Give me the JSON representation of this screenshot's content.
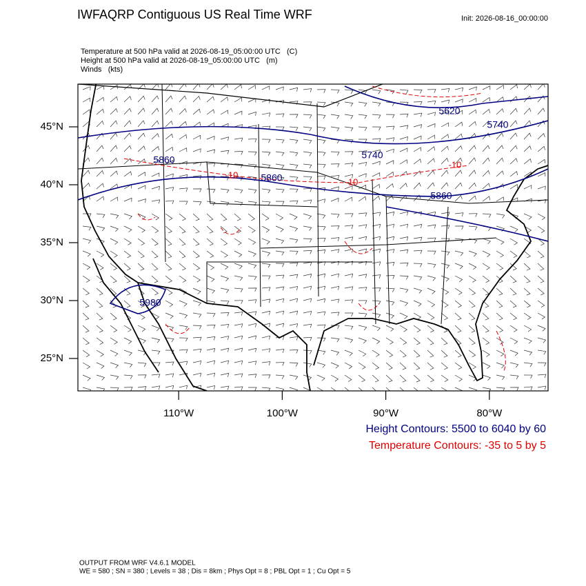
{
  "header": {
    "title": "IWFAQRP Contiguous US Real Time WRF",
    "init": "Init: 2026-08-16_00:00:00"
  },
  "fields": [
    "Temperature at 500 hPa valid at 2026-08-19_05:00:00 UTC   (C)",
    "Height at 500 hPa valid at 2026-08-19_05:00:00 UTC   (m)",
    "Winds   (kts)"
  ],
  "map": {
    "lon_range": [
      -119.73,
      -74.33
    ],
    "lat_range": [
      22.2,
      48.69
    ],
    "lat_ticks": [
      {
        "value": 45,
        "label": "45°N"
      },
      {
        "value": 40,
        "label": "40°N"
      },
      {
        "value": 35,
        "label": "35°N"
      },
      {
        "value": 30,
        "label": "30°N"
      },
      {
        "value": 25,
        "label": "25°N"
      }
    ],
    "lon_ticks": [
      {
        "value": -110,
        "label": "110°W"
      },
      {
        "value": -100,
        "label": "100°W"
      },
      {
        "value": -90,
        "label": "90°W"
      },
      {
        "value": -80,
        "label": "80°W"
      }
    ],
    "height_contour_labels": [
      "5620",
      "5740",
      "5740",
      "5860",
      "5860",
      "5860",
      "5980"
    ],
    "temperature_contour_labels": [
      "-10",
      "-10",
      "-10"
    ]
  },
  "legend": [
    "Height Contours: 5500 to 6040 by 60",
    "Temperature Contours: -35 to 5 by 5"
  ],
  "footer": [
    "OUTPUT FROM WRF V4.6.1 MODEL",
    "WE = 580 ; SN = 380 ; Levels = 38 ; Dis = 8km ; Phys Opt = 8 ; PBL Opt = 1 ; Cu Opt = 5"
  ]
}
